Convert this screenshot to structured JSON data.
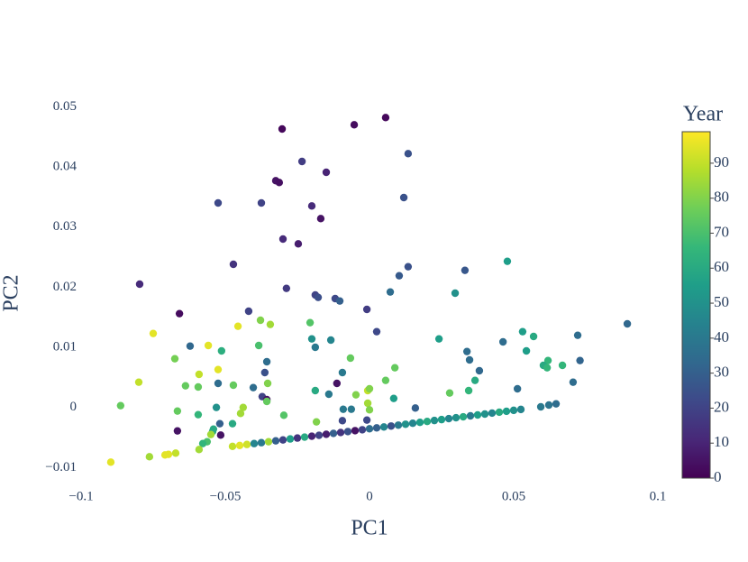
{
  "chart_data": {
    "type": "scatter",
    "xlabel": "PC1",
    "ylabel": "PC2",
    "colorbar_title": "Year",
    "x": [
      -0.0303,
      -0.0053,
      0.0056,
      0.0134,
      -0.0234,
      -0.015,
      -0.0325,
      -0.0313,
      -0.0525,
      -0.0375,
      0.0119,
      -0.02,
      -0.0169,
      -0.03,
      -0.0247,
      -0.0472,
      0.0134,
      0.0103,
      0.0331,
      0.0478,
      -0.0797,
      -0.0288,
      0.0072,
      0.0297,
      -0.0188,
      -0.0178,
      -0.0119,
      -0.0103,
      -0.0419,
      -0.0009,
      -0.0659,
      -0.0378,
      -0.0206,
      -0.0344,
      -0.0456,
      0.0531,
      0.0569,
      0.0025,
      0.0894,
      0.0722,
      -0.075,
      0.0241,
      -0.02,
      -0.0134,
      -0.0188,
      -0.0622,
      -0.0559,
      -0.0384,
      0.0463,
      0.0338,
      0.0544,
      -0.0513,
      -0.0675,
      -0.0066,
      -0.0356,
      0.0347,
      0.0619,
      0.073,
      0.0603,
      0.0616,
      0.0669,
      0.0088,
      -0.0525,
      -0.0094,
      0.0381,
      -0.0363,
      -0.0591,
      0.0366,
      0.0056,
      0.0706,
      -0.08,
      -0.0525,
      -0.0353,
      -0.0472,
      -0.0638,
      -0.0594,
      -0.0113,
      -0.0403,
      -0.0188,
      0.0344,
      0.0513,
      -0.0141,
      -0.0006,
      -0.0047,
      0.0278,
      0,
      0.0084,
      -0.0372,
      -0.0356,
      -0.0356,
      -0.0863,
      -0.0531,
      -0.0438,
      -0.0666,
      0.0159,
      -0.0006,
      0,
      -0.0297,
      -0.0447,
      -0.0594,
      -0.0091,
      -0.0063,
      -0.0094,
      -0.0184,
      -0.0009,
      -0.0519,
      -0.0475,
      -0.0541,
      -0.0666,
      -0.0544,
      -0.0516,
      -0.055,
      -0.0563,
      -0.0578,
      0.0594,
      0.0622,
      0.0647,
      -0.0897,
      -0.0763,
      -0.0709,
      -0.0697,
      -0.0672,
      -0.0591,
      -0.0475,
      -0.045,
      -0.0425,
      -0.04,
      -0.0375,
      -0.035,
      -0.0325,
      -0.03,
      -0.0275,
      -0.025,
      -0.0225,
      -0.02,
      -0.0175,
      -0.015,
      -0.0125,
      -0.01,
      -0.0075,
      -0.005,
      -0.0025,
      0,
      0.0025,
      0.005,
      0.0075,
      0.01,
      0.0125,
      0.015,
      0.0175,
      0.02,
      0.0225,
      0.025,
      0.0275,
      0.03,
      0.0325,
      0.035,
      0.0375,
      0.04,
      0.0425,
      0.045,
      0.0475,
      0.05,
      0.0525
    ],
    "y": [
      0.0463,
      0.047,
      0.0482,
      0.0422,
      0.0409,
      0.0391,
      0.0377,
      0.0374,
      0.034,
      0.034,
      0.0349,
      0.0335,
      0.0314,
      0.028,
      0.0272,
      0.0238,
      0.0234,
      0.0219,
      0.0228,
      0.0243,
      0.0205,
      0.0198,
      0.0192,
      0.019,
      0.0187,
      0.0183,
      0.0181,
      0.0177,
      0.016,
      0.0163,
      0.0156,
      0.0145,
      0.0141,
      0.0138,
      0.0135,
      0.0126,
      0.0118,
      0.0126,
      0.0139,
      0.012,
      0.0123,
      0.0114,
      0.0114,
      0.0112,
      0.01,
      0.0102,
      0.0103,
      0.0103,
      0.0109,
      0.0093,
      0.0094,
      0.0094,
      0.0081,
      0.0082,
      0.0076,
      0.0079,
      0.0078,
      0.0078,
      0.007,
      0.0066,
      0.007,
      0.0066,
      0.0063,
      0.0058,
      0.0061,
      0.0058,
      0.0055,
      0.0045,
      0.0045,
      0.0042,
      0.0042,
      0.004,
      0.004,
      0.0037,
      0.0036,
      0.0034,
      0.004,
      0.0033,
      0.0028,
      0.0028,
      0.0031,
      0.0022,
      0.0028,
      0.0021,
      0.0024,
      0.0031,
      0.0015,
      0.0018,
      0.0013,
      0.001,
      0.0003,
      0,
      0,
      -0.0006,
      -0.0001,
      0.0007,
      -0.0004,
      -0.0013,
      -0.001,
      -0.0012,
      -0.0003,
      -0.0003,
      -0.0022,
      -0.0024,
      -0.0021,
      -0.0027,
      -0.0027,
      -0.0036,
      -0.0039,
      -0.004,
      -0.0046,
      -0.0045,
      -0.0057,
      -0.006,
      0.0001,
      0.0004,
      0.0006,
      -0.0091,
      -0.0082,
      -0.0079,
      -0.0078,
      -0.0076,
      -0.007,
      -0.00647,
      -0.00632,
      -0.00616,
      -0.00601,
      -0.00586,
      -0.0057,
      -0.00555,
      -0.0054,
      -0.00524,
      -0.00509,
      -0.00493,
      -0.00478,
      -0.00463,
      -0.00447,
      -0.00432,
      -0.00417,
      -0.00401,
      -0.00386,
      -0.00371,
      -0.00355,
      -0.0034,
      -0.00325,
      -0.00309,
      -0.00294,
      -0.00279,
      -0.00263,
      -0.00248,
      -0.00233,
      -0.00217,
      -0.00202,
      -0.00186,
      -0.00171,
      -0.00156,
      -0.0014,
      -0.00125,
      -0.0011,
      -0.00094,
      -0.00079,
      -0.00064,
      -0.00048,
      -0.00033
    ],
    "color_values": [
      2,
      3,
      2,
      25,
      18,
      10,
      5,
      4,
      22,
      20,
      25,
      12,
      5,
      12,
      8,
      15,
      25,
      28,
      27,
      55,
      12,
      17,
      35,
      50,
      20,
      24,
      22,
      30,
      20,
      18,
      3,
      80,
      72,
      85,
      95,
      55,
      60,
      22,
      33,
      35,
      95,
      55,
      50,
      45,
      40,
      33,
      95,
      70,
      35,
      35,
      55,
      62,
      78,
      75,
      35,
      35,
      65,
      32,
      60,
      65,
      65,
      75,
      95,
      40,
      33,
      25,
      90,
      60,
      75,
      35,
      90,
      35,
      80,
      75,
      75,
      75,
      5,
      35,
      60,
      65,
      35,
      40,
      90,
      80,
      75,
      80,
      55,
      20,
      5,
      75,
      75,
      50,
      85,
      75,
      30,
      85,
      80,
      72,
      85,
      65,
      40,
      40,
      22,
      80,
      22,
      30,
      60,
      60,
      5,
      60,
      5,
      85,
      70,
      65,
      40,
      38,
      35,
      95,
      85,
      95,
      95,
      90,
      85,
      90,
      95,
      92,
      45,
      40,
      85,
      30,
      20,
      55,
      15,
      60,
      10,
      20,
      8,
      30,
      15,
      25,
      5,
      20,
      35,
      30,
      45,
      25,
      40,
      50,
      45,
      55,
      60,
      50,
      55,
      45,
      50,
      60,
      40,
      55,
      50,
      45,
      60,
      55,
      50,
      45
    ],
    "xlim": [
      -0.1,
      0.1
    ],
    "xticks": [
      {
        "value": -0.1,
        "label": "−0.1"
      },
      {
        "value": -0.05,
        "label": "−0.05"
      },
      0,
      0.05,
      0.1
    ],
    "ylim": [
      -0.0125,
      0.052
    ],
    "yticks": [
      {
        "value": -0.01,
        "label": "−0.01"
      },
      0,
      0.01,
      0.02,
      0.03,
      0.04,
      0.05
    ],
    "clim": [
      0,
      99
    ],
    "cticks": [
      0,
      10,
      20,
      30,
      40,
      50,
      60,
      70,
      80,
      90
    ],
    "colorscale": [
      "#440154",
      "#482878",
      "#3e4989",
      "#31688e",
      "#26828e",
      "#1f9e89",
      "#35b779",
      "#6ece58",
      "#b5de2b",
      "#fde725"
    ],
    "grid": false
  }
}
